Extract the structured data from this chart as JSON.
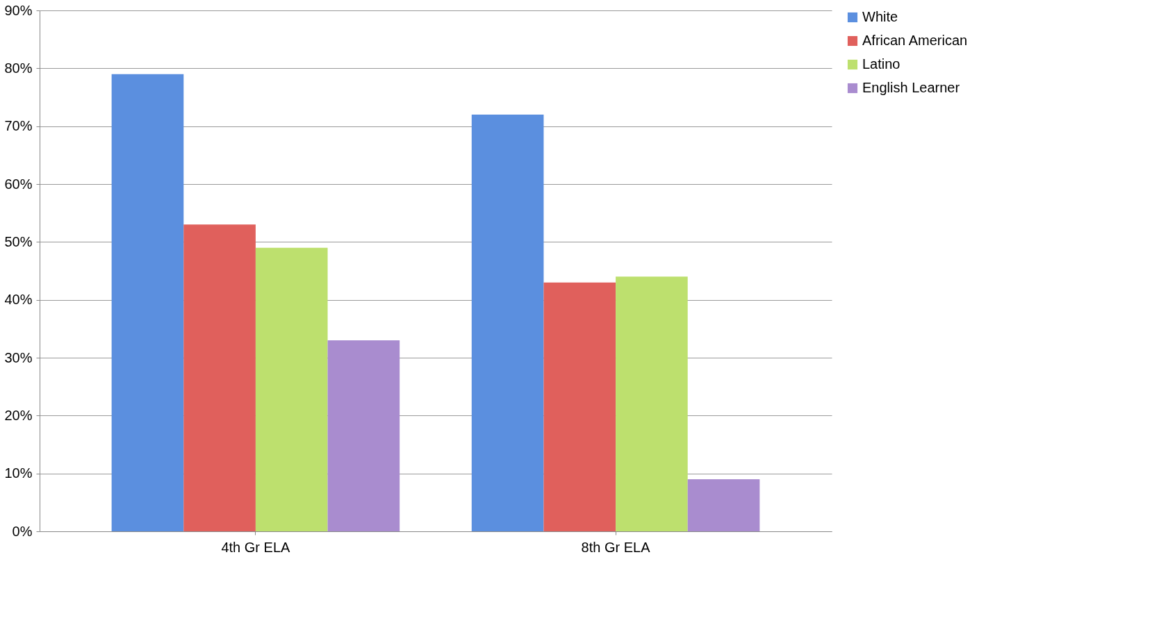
{
  "chart_data": {
    "type": "bar",
    "categories": [
      "4th Gr ELA",
      "8th Gr ELA"
    ],
    "series": [
      {
        "name": "White",
        "color": "#5b8fdf",
        "values": [
          79,
          72
        ]
      },
      {
        "name": "African American",
        "color": "#e0605c",
        "values": [
          53,
          43
        ]
      },
      {
        "name": "Latino",
        "color": "#bde06e",
        "values": [
          49,
          44
        ]
      },
      {
        "name": "English Learner",
        "color": "#a98ccf",
        "values": [
          33,
          9
        ]
      }
    ],
    "ylim": [
      0,
      90
    ],
    "yticks": [
      {
        "value": 0,
        "label": "0%"
      },
      {
        "value": 10,
        "label": "10%"
      },
      {
        "value": 20,
        "label": "20%"
      },
      {
        "value": 30,
        "label": "30%"
      },
      {
        "value": 40,
        "label": "40%"
      },
      {
        "value": 50,
        "label": "50%"
      },
      {
        "value": 60,
        "label": "60%"
      },
      {
        "value": 70,
        "label": "70%"
      },
      {
        "value": 80,
        "label": "80%"
      },
      {
        "value": 90,
        "label": "90%"
      }
    ],
    "grid": "y",
    "legend": "right"
  }
}
